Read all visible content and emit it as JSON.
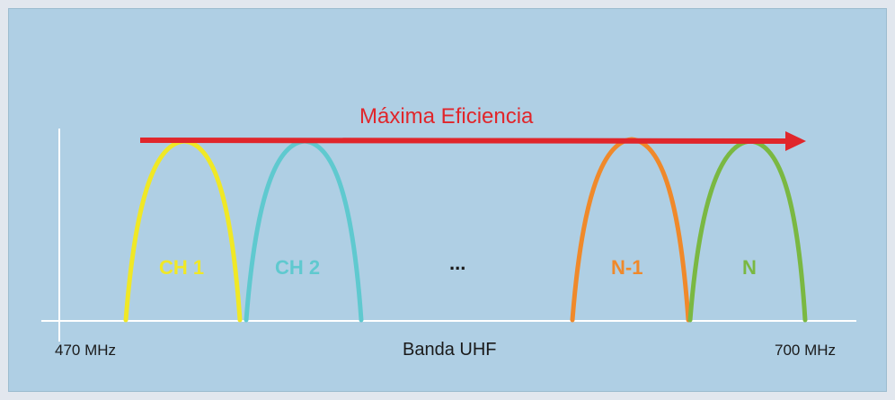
{
  "title": "Máxima Eficiencia",
  "axis": {
    "left_label": "470 MHz",
    "center_label": "Banda UHF",
    "right_label": "700 MHz"
  },
  "channels": [
    {
      "label": "CH 1",
      "color": "#f0e826"
    },
    {
      "label": "CH 2",
      "color": "#5fc9cf"
    },
    {
      "label": "...",
      "color": "#1a1a1a"
    },
    {
      "label": "N-1",
      "color": "#f0892a"
    },
    {
      "label": "N",
      "color": "#7ab842"
    }
  ],
  "colors": {
    "background": "#afcfe4",
    "arrow": "#e0262b",
    "axis": "#ffffff"
  }
}
